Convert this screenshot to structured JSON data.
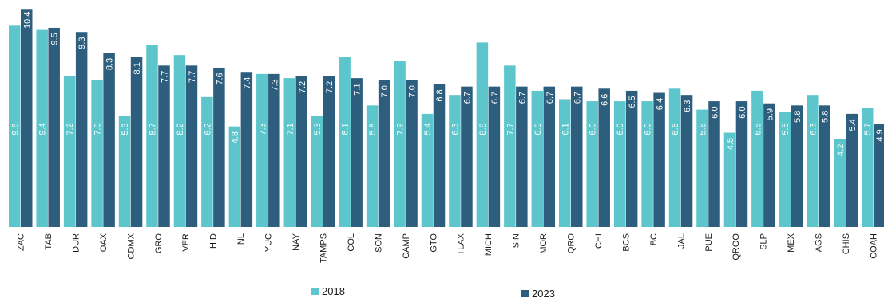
{
  "chart_data": {
    "type": "bar",
    "categories": [
      "ZAC",
      "TAB",
      "DUR",
      "OAX",
      "CDMX",
      "GRO",
      "VER",
      "HID",
      "NL",
      "YUC",
      "NAY",
      "TAMPS",
      "COL",
      "SON",
      "CAMP",
      "GTO",
      "TLAX",
      "MICH",
      "SIN",
      "MOR",
      "QRO",
      "CHI",
      "BCS",
      "BC",
      "JAL",
      "PUE",
      "QROO",
      "SLP",
      "MEX",
      "AGS",
      "CHIS",
      "COAH"
    ],
    "series": [
      {
        "name": "2018",
        "color": "#5cc6cc",
        "values": [
          9.6,
          9.4,
          7.2,
          7.0,
          5.3,
          8.7,
          8.2,
          6.2,
          4.8,
          7.3,
          7.1,
          5.3,
          8.1,
          5.8,
          7.9,
          5.4,
          6.3,
          8.8,
          7.7,
          6.5,
          6.1,
          6.0,
          6.0,
          6.0,
          6.6,
          5.6,
          4.5,
          6.5,
          5.5,
          6.3,
          4.2,
          5.7
        ]
      },
      {
        "name": "2023",
        "color": "#2e5e7e",
        "values": [
          10.4,
          9.5,
          9.3,
          8.3,
          8.1,
          7.7,
          7.7,
          7.6,
          7.4,
          7.3,
          7.2,
          7.2,
          7.1,
          7.0,
          7.0,
          6.8,
          6.7,
          6.7,
          6.7,
          6.7,
          6.7,
          6.6,
          6.5,
          6.4,
          6.3,
          6.0,
          6.0,
          5.9,
          5.8,
          5.8,
          5.4,
          4.9
        ]
      }
    ],
    "ylim": [
      0,
      10.6
    ],
    "legend_position": "bottom",
    "grid": false
  }
}
